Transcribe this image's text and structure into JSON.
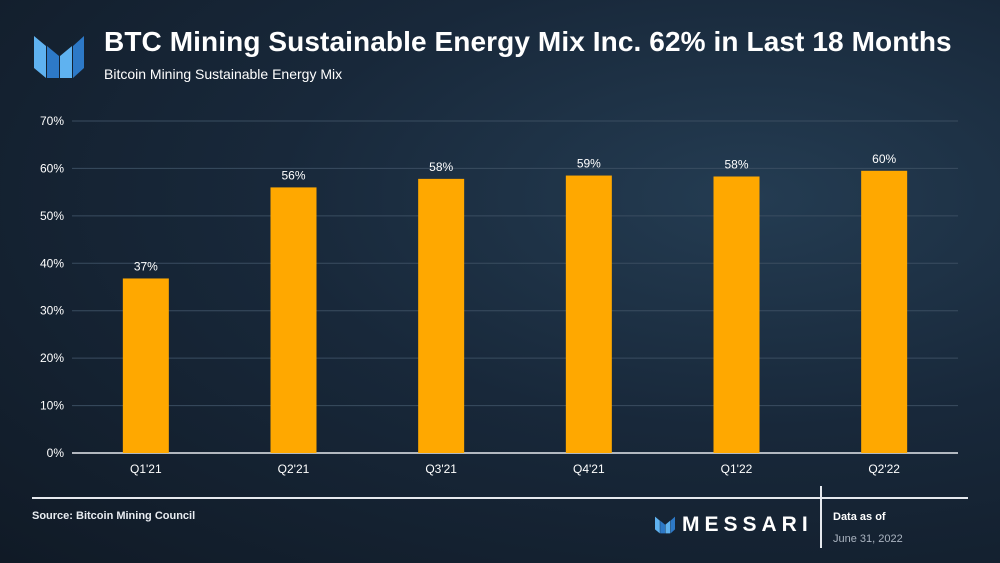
{
  "header": {
    "title": "BTC Mining Sustainable Energy Mix Inc. 62% in Last 18 Months",
    "subtitle": "Bitcoin Mining Sustainable Energy Mix"
  },
  "chart_data": {
    "type": "bar",
    "title": "Bitcoin Mining Sustainable Energy Mix",
    "categories": [
      "Q1'21",
      "Q2'21",
      "Q3'21",
      "Q4'21",
      "Q1'22",
      "Q2'22"
    ],
    "values": [
      36.8,
      56.0,
      57.8,
      58.5,
      58.3,
      59.5
    ],
    "data_labels": [
      "37%",
      "56%",
      "58%",
      "59%",
      "58%",
      "60%"
    ],
    "yticks": [
      0,
      10,
      20,
      30,
      40,
      50,
      60,
      70
    ],
    "ytick_labels": [
      "0%",
      "10%",
      "20%",
      "30%",
      "40%",
      "50%",
      "60%",
      "70%"
    ],
    "ylim": [
      0,
      70
    ],
    "xlabel": "",
    "ylabel": "",
    "grid": true,
    "bar_color": "#FFA800",
    "grid_color": "#3a4d60"
  },
  "footer": {
    "source": "Source: Bitcoin Mining Council",
    "brand": "MESSARI",
    "data_as_of_label": "Data as of",
    "data_as_of_date": "June 31, 2022"
  },
  "colors": {
    "logo_light": "#5fb2f0",
    "logo_dark": "#2d79c7"
  }
}
